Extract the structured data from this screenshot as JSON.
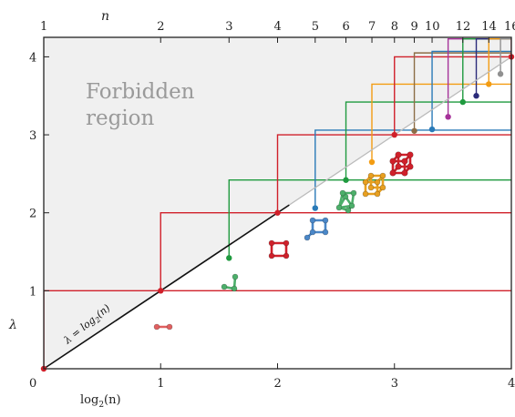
{
  "chart_data": {
    "type": "line",
    "xlabel": "log",
    "xlabel_sub": "2",
    "xlabel_arg": "(n)",
    "top_axis_label": "n",
    "ylabel": "λ",
    "xlim": [
      0,
      4
    ],
    "ylim": [
      0,
      4.25
    ],
    "bottom_ticks": [
      {
        "value": 0,
        "label": "0"
      },
      {
        "value": 1,
        "label": "1"
      },
      {
        "value": 2,
        "label": "2"
      },
      {
        "value": 3,
        "label": "3"
      },
      {
        "value": 4,
        "label": "4"
      }
    ],
    "left_ticks": [
      {
        "value": 1,
        "label": "1"
      },
      {
        "value": 2,
        "label": "2"
      },
      {
        "value": 3,
        "label": "3"
      },
      {
        "value": 4,
        "label": "4"
      }
    ],
    "top_ticks": [
      {
        "n": 1,
        "label": "1"
      },
      {
        "n": 2,
        "label": "2"
      },
      {
        "n": 3,
        "label": "3"
      },
      {
        "n": 4,
        "label": "4"
      },
      {
        "n": 5,
        "label": "5"
      },
      {
        "n": 6,
        "label": "6"
      },
      {
        "n": 7,
        "label": "7"
      },
      {
        "n": 8,
        "label": "8"
      },
      {
        "n": 9,
        "label": "9"
      },
      {
        "n": 10,
        "label": "10"
      },
      {
        "n": 12,
        "label": "12"
      },
      {
        "n": 14,
        "label": "14"
      },
      {
        "n": 16,
        "label": "16"
      }
    ],
    "forbidden_region_label": [
      "Forbidden",
      "region"
    ],
    "boundary_label": {
      "lhs": "λ = log",
      "sub": "2",
      "rhs": "(n)"
    },
    "boundary_line": {
      "from": [
        0,
        0
      ],
      "to": [
        4,
        4
      ],
      "color": "#111111",
      "extension_color": "#bbbbbb"
    },
    "series": [
      {
        "n": 1,
        "color": "#d0202a",
        "point": [
          0,
          0
        ]
      },
      {
        "n": 2,
        "color": "#d0202a",
        "point": [
          1,
          1
        ]
      },
      {
        "n": 3,
        "color": "#1f9a3f",
        "point": [
          1.585,
          1.42
        ]
      },
      {
        "n": 4,
        "color": "#d0202a",
        "point": [
          2,
          2
        ]
      },
      {
        "n": 5,
        "color": "#2a7ab8",
        "point": [
          2.322,
          2.06
        ]
      },
      {
        "n": 6,
        "color": "#1f9a3f",
        "point": [
          2.585,
          2.42
        ]
      },
      {
        "n": 7,
        "color": "#f39c12",
        "point": [
          2.807,
          2.65
        ]
      },
      {
        "n": 8,
        "color": "#d0202a",
        "point": [
          3,
          3
        ]
      },
      {
        "n": 9,
        "color": "#8c6d46",
        "point": [
          3.17,
          3.05
        ]
      },
      {
        "n": 10,
        "color": "#2a7ab8",
        "point": [
          3.322,
          3.07
        ]
      },
      {
        "n": 11,
        "color": "#a6329a",
        "point": [
          3.459,
          3.23
        ]
      },
      {
        "n": 12,
        "color": "#1f9a3f",
        "point": [
          3.585,
          3.42
        ]
      },
      {
        "n": 13,
        "color": "#2b2b7a",
        "point": [
          3.7,
          3.5
        ]
      },
      {
        "n": 14,
        "color": "#f39c12",
        "point": [
          3.807,
          3.65
        ]
      },
      {
        "n": 15,
        "color": "#909090",
        "point": [
          3.907,
          3.78
        ]
      },
      {
        "n": 16,
        "color": "#d0202a",
        "point": [
          4,
          4
        ]
      }
    ],
    "molecule_glyphs": [
      {
        "n": 2,
        "shape": "dimer",
        "color": "#e06060"
      },
      {
        "n": 3,
        "shape": "chain",
        "color": "#4caf6a"
      },
      {
        "n": 4,
        "shape": "square",
        "color": "#d0202a"
      },
      {
        "n": 5,
        "shape": "square-tail",
        "color": "#4a87c8"
      },
      {
        "n": 6,
        "shape": "prism",
        "color": "#4caf6a"
      },
      {
        "n": 7,
        "shape": "cube-open",
        "color": "#e8a020"
      },
      {
        "n": 8,
        "shape": "cube",
        "color": "#d0202a"
      }
    ]
  }
}
